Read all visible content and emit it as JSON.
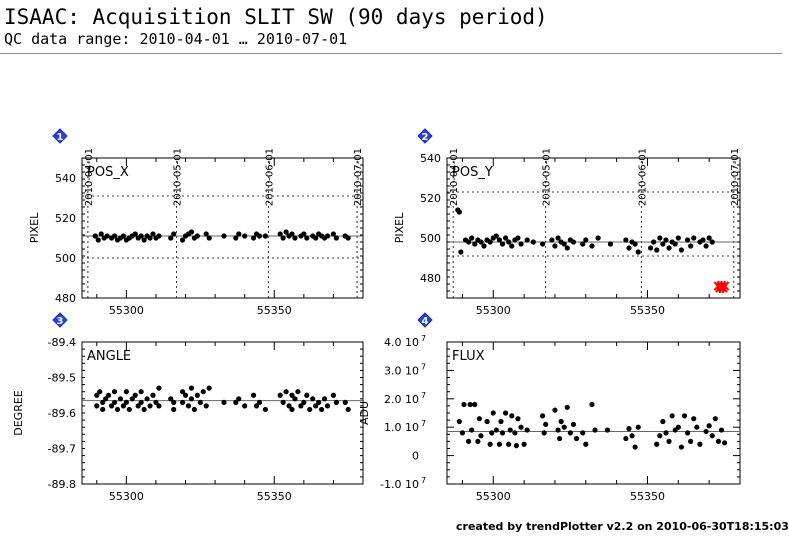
{
  "header": {
    "title": "ISAAC: Acquisition SLIT SW (90 days period)",
    "subtitle": "QC data range: 2010-04-01 … 2010-07-01"
  },
  "footer": {
    "text": "created by trendPlotter v2.2 on 2010-06-30T18:15:03"
  },
  "chart_data": [
    {
      "type": "scatter",
      "index": "1",
      "title": "POS_X",
      "ylabel": "PIXEL",
      "xlim": [
        55285,
        55380
      ],
      "ylim": [
        480,
        550
      ],
      "y_ticks": [
        480,
        500,
        520,
        540
      ],
      "y_tick_labels": [
        "480",
        "500",
        "520",
        "540"
      ],
      "x_ticks": [
        55300,
        55350
      ],
      "x_tick_labels": [
        "55300",
        "55350"
      ],
      "date_ticks": [
        {
          "x": 55287,
          "label": "2010-04-01"
        },
        {
          "x": 55317,
          "label": "2010-05-01"
        },
        {
          "x": 55348,
          "label": "2010-06-01"
        },
        {
          "x": 55378,
          "label": "2010-07-01"
        }
      ],
      "reference_line": 511,
      "limit_lines": [
        500,
        531
      ],
      "marker_color": "#000000",
      "series": [
        {
          "x": [
            55289.5,
            55290.5,
            55291.5,
            55292.5,
            55293.5,
            55295,
            55296,
            55297,
            55298,
            55299,
            55300,
            55301,
            55302,
            55303,
            55304,
            55305,
            55306,
            55307,
            55308,
            55309,
            55310,
            55311,
            55315,
            55316,
            55319,
            55320,
            55321,
            55322,
            55323,
            55324,
            55327,
            55328,
            55333,
            55337,
            55338,
            55340,
            55343,
            55344,
            55345,
            55347,
            55352,
            55353,
            55354,
            55355,
            55356,
            55357,
            55359,
            55360,
            55361,
            55363,
            55364,
            55365,
            55366,
            55367,
            55368,
            55370,
            55371,
            55374,
            55375
          ],
          "y": [
            511,
            509,
            512,
            510,
            511,
            510,
            511,
            509,
            510,
            511,
            509,
            510,
            511,
            512,
            510,
            511,
            509,
            511,
            510,
            512,
            510,
            511,
            510,
            512,
            509,
            511,
            512,
            513,
            510,
            511,
            512,
            510,
            511,
            510,
            512,
            511,
            510,
            512,
            511,
            511,
            512,
            510,
            513,
            511,
            512,
            510,
            511,
            512,
            510,
            511,
            510,
            512,
            511,
            510,
            511,
            512,
            510,
            511,
            510
          ]
        }
      ]
    },
    {
      "type": "scatter",
      "index": "2",
      "title": "POS_Y",
      "ylabel": "PIXEL",
      "xlim": [
        55285,
        55380
      ],
      "ylim": [
        470,
        540
      ],
      "y_ticks": [
        480,
        500,
        520,
        540
      ],
      "y_tick_labels": [
        "480",
        "500",
        "520",
        "540"
      ],
      "x_ticks": [
        55300,
        55350
      ],
      "x_tick_labels": [
        "55300",
        "55350"
      ],
      "date_ticks": [
        {
          "x": 55287,
          "label": "2010-04-01"
        },
        {
          "x": 55317,
          "label": "2010-05-01"
        },
        {
          "x": 55348,
          "label": "2010-06-01"
        },
        {
          "x": 55378,
          "label": "2010-07-01"
        }
      ],
      "reference_line": 498,
      "limit_lines": [
        491,
        523
      ],
      "marker_color": "#000000",
      "outlier_color": "#ff0000",
      "series": [
        {
          "x": [
            55288.5,
            55289,
            55289.5,
            55291,
            55292,
            55293,
            55294,
            55295,
            55296,
            55297,
            55298,
            55299,
            55300,
            55301,
            55302,
            55303,
            55304,
            55305,
            55306,
            55307,
            55308,
            55309,
            55311,
            55313,
            55316,
            55319,
            55320,
            55321,
            55322,
            55323,
            55324,
            55325,
            55326,
            55329,
            55330,
            55332,
            55334,
            55338,
            55343,
            55344,
            55345,
            55346,
            55347,
            55351,
            55352,
            55353,
            55354,
            55355,
            55356,
            55357,
            55358,
            55359,
            55360,
            55361,
            55363,
            55364,
            55365,
            55367,
            55368,
            55369,
            55370,
            55371
          ],
          "y": [
            514,
            513,
            493,
            499,
            498,
            500,
            497,
            499,
            498,
            496,
            499,
            498,
            500,
            501,
            499,
            497,
            500,
            498,
            496,
            499,
            500,
            497,
            499,
            498,
            497,
            499,
            496,
            500,
            498,
            497,
            495,
            499,
            498,
            497,
            499,
            496,
            500,
            497,
            499,
            495,
            498,
            497,
            493,
            495,
            498,
            494,
            500,
            497,
            499,
            495,
            498,
            497,
            500,
            494,
            499,
            496,
            500,
            498,
            499,
            496,
            500,
            498
          ]
        },
        {
          "name": "",
          "x": [
            55373,
            55373.5,
            55374,
            55374.5,
            55375
          ],
          "y": [
            476,
            475,
            476,
            475,
            476
          ],
          "outlier": true
        }
      ]
    },
    {
      "type": "scatter",
      "index": "3",
      "title": "ANGLE",
      "ylabel": "DEGREE",
      "xlim": [
        55285,
        55380
      ],
      "ylim": [
        -89.8,
        -89.4
      ],
      "y_ticks": [
        -89.8,
        -89.7,
        -89.6,
        -89.5,
        -89.4
      ],
      "y_tick_labels": [
        "-89.8",
        "-89.7",
        "-89.6",
        "-89.5",
        "-89.4"
      ],
      "x_ticks": [
        55300,
        55350
      ],
      "x_tick_labels": [
        "55300",
        "55350"
      ],
      "reference_line": -89.565,
      "marker_color": "#000000",
      "series": [
        {
          "x": [
            55290,
            55290,
            55291,
            55292,
            55292,
            55293,
            55294,
            55295,
            55296,
            55296,
            55297,
            55298,
            55299,
            55300,
            55300,
            55301,
            55302,
            55303,
            55304,
            55305,
            55305,
            55306,
            55307,
            55308,
            55309,
            55310,
            55311,
            55311,
            55315,
            55316,
            55316,
            55319,
            55319,
            55320,
            55321,
            55322,
            55322,
            55323,
            55324,
            55325,
            55326,
            55327,
            55328,
            55333,
            55337,
            55338,
            55340,
            55343,
            55344,
            55345,
            55347,
            55352,
            55353,
            55354,
            55355,
            55356,
            55356,
            55357,
            55358,
            55359,
            55360,
            55361,
            55362,
            55363,
            55364,
            55365,
            55366,
            55367,
            55368,
            55370,
            55371,
            55374,
            55375
          ],
          "y": [
            -89.55,
            -89.58,
            -89.54,
            -89.57,
            -89.59,
            -89.56,
            -89.55,
            -89.58,
            -89.54,
            -89.57,
            -89.59,
            -89.56,
            -89.58,
            -89.54,
            -89.57,
            -89.59,
            -89.56,
            -89.55,
            -89.58,
            -89.54,
            -89.57,
            -89.59,
            -89.56,
            -89.58,
            -89.55,
            -89.57,
            -89.53,
            -89.58,
            -89.56,
            -89.59,
            -89.57,
            -89.54,
            -89.57,
            -89.55,
            -89.58,
            -89.53,
            -89.56,
            -89.59,
            -89.55,
            -89.57,
            -89.54,
            -89.58,
            -89.53,
            -89.57,
            -89.57,
            -89.56,
            -89.58,
            -89.55,
            -89.58,
            -89.57,
            -89.59,
            -89.55,
            -89.57,
            -89.54,
            -89.58,
            -89.55,
            -89.59,
            -89.56,
            -89.54,
            -89.58,
            -89.57,
            -89.55,
            -89.59,
            -89.56,
            -89.58,
            -89.57,
            -89.59,
            -89.56,
            -89.58,
            -89.55,
            -89.57,
            -89.57,
            -89.59
          ]
        }
      ]
    },
    {
      "type": "scatter",
      "index": "4",
      "title": "FLUX",
      "ylabel": "ADU",
      "xlim": [
        55285,
        55380
      ],
      "ylim": [
        -10000000,
        40000000
      ],
      "y_ticks": [
        -10000000,
        0,
        10000000,
        20000000,
        30000000,
        40000000
      ],
      "y_tick_labels": [
        "-1.0 10",
        "0",
        "1.0 10",
        "2.0 10",
        "3.0 10",
        "4.0 10"
      ],
      "y_tick_exponent": "7",
      "x_ticks": [
        55300,
        55350
      ],
      "x_tick_labels": [
        "55300",
        "55350"
      ],
      "reference_line": 8500000,
      "marker_color": "#000000",
      "series": [
        {
          "x": [
            55289,
            55290,
            55290.5,
            55292,
            55292.5,
            55293,
            55294,
            55295,
            55295.5,
            55296,
            55298,
            55299,
            55299.5,
            55300,
            55301,
            55302,
            55302.5,
            55303,
            55304,
            55305,
            55305.5,
            55306,
            55307,
            55307.5,
            55308,
            55309,
            55310,
            55311,
            55316,
            55316.5,
            55317,
            55320,
            55321,
            55321.5,
            55322,
            55323,
            55324,
            55325,
            55326,
            55327,
            55329,
            55330,
            55332,
            55333,
            55337,
            55343,
            55344,
            55345,
            55346,
            55347,
            55353,
            55354,
            55355,
            55356,
            55357,
            55358,
            55359,
            55360,
            55361,
            55362,
            55363,
            55364,
            55365,
            55366,
            55367,
            55369,
            55370,
            55371,
            55372,
            55373,
            55374,
            55375
          ],
          "y": [
            12000000,
            8000000,
            18000000,
            5000000,
            18000000,
            9000000,
            18000000,
            5000000,
            13000000,
            7000000,
            12000000,
            4000000,
            8000000,
            15000000,
            9000000,
            4000000,
            12000000,
            8000000,
            15000000,
            4000000,
            9000000,
            14000000,
            8000000,
            3500000,
            13000000,
            10000000,
            4000000,
            9000000,
            14000000,
            8000000,
            11000000,
            16000000,
            9000000,
            6000000,
            12000000,
            10000000,
            17000000,
            8000000,
            11000000,
            6000000,
            8000000,
            4000000,
            18000000,
            9000000,
            9000000,
            6000000,
            9500000,
            7000000,
            3000000,
            10000000,
            4000000,
            7000000,
            12000000,
            8000000,
            5000000,
            14000000,
            9000000,
            10000000,
            3000000,
            14000000,
            8000000,
            5000000,
            13000000,
            10000000,
            4000000,
            8500000,
            10500000,
            7000000,
            13000000,
            5000000,
            9000000,
            4500000
          ]
        }
      ]
    }
  ]
}
